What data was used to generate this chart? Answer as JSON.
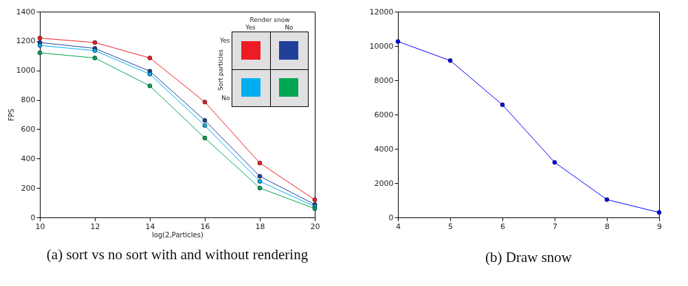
{
  "chart_data": [
    {
      "type": "line",
      "title": "(a) sort vs no sort with and without rendering",
      "xlabel": "log(2,Particles)",
      "ylabel": "FPS",
      "x": [
        10,
        12,
        14,
        16,
        18,
        20
      ],
      "xlim": [
        10,
        20
      ],
      "xticks": [
        10,
        12,
        14,
        16,
        18,
        20
      ],
      "ylim": [
        0,
        1400
      ],
      "yticks": [
        0,
        200,
        400,
        600,
        800,
        1000,
        1200,
        1400
      ],
      "marker": "circle",
      "annotations": [
        "Render snow",
        "Yes",
        "No",
        "Sort particles",
        "Yes",
        "No"
      ],
      "series": [
        {
          "color": "#ed1c24",
          "values": [
            1220,
            1190,
            1085,
            785,
            370,
            120
          ]
        },
        {
          "color": "#21409a",
          "values": [
            1190,
            1150,
            995,
            660,
            280,
            88
          ]
        },
        {
          "color": "#00aeef",
          "values": [
            1170,
            1135,
            975,
            625,
            245,
            75
          ]
        },
        {
          "color": "#00a651",
          "values": [
            1120,
            1085,
            895,
            540,
            200,
            60
          ]
        }
      ]
    },
    {
      "type": "line",
      "title": "(b) Draw snow",
      "x": [
        4,
        5,
        6,
        7,
        8,
        9
      ],
      "xlim": [
        4,
        9
      ],
      "xticks": [
        4,
        5,
        6,
        7,
        8,
        9
      ],
      "ylim": [
        0,
        12000
      ],
      "yticks": [
        0,
        2000,
        4000,
        6000,
        8000,
        10000,
        12000
      ],
      "marker": "circle",
      "series": [
        {
          "color": "#0000ff",
          "values": [
            10260,
            9150,
            6570,
            3210,
            1040,
            290
          ]
        }
      ]
    }
  ]
}
